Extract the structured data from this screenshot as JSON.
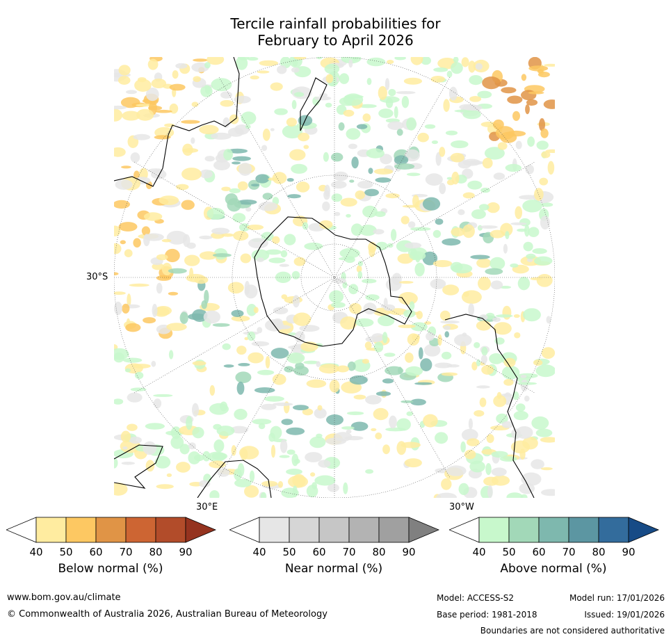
{
  "title_line1": "Tercile rainfall probabilities for",
  "title_line2": "February to April 2026",
  "map": {
    "labels": {
      "lat": "30°S",
      "lon_e": "30°E",
      "lon_w": "30°W"
    }
  },
  "colorbars": [
    {
      "title": "Below normal (%)",
      "ticks": [
        "40",
        "50",
        "60",
        "70",
        "80",
        "90"
      ],
      "colors": [
        "#ffffff",
        "#ffeca0",
        "#fdc862",
        "#e09446",
        "#cd6533",
        "#b24c2a",
        "#95331f"
      ]
    },
    {
      "title": "Near normal (%)",
      "ticks": [
        "40",
        "50",
        "60",
        "70",
        "80",
        "90"
      ],
      "colors": [
        "#ffffff",
        "#e6e6e6",
        "#d6d6d6",
        "#c6c6c6",
        "#b3b3b3",
        "#a0a0a0",
        "#808080"
      ]
    },
    {
      "title": "Above normal (%)",
      "ticks": [
        "40",
        "50",
        "60",
        "70",
        "80",
        "90"
      ],
      "colors": [
        "#ffffff",
        "#c8f8cc",
        "#a2d8b8",
        "#7eb8ae",
        "#5c96a2",
        "#336c9c",
        "#174b86"
      ]
    }
  ],
  "footer": {
    "url": "www.bom.gov.au/climate",
    "copyright": "© Commonwealth of Australia 2026, Australian Bureau of Meteorology",
    "model": "Model: ACCESS-S2",
    "model_run": "Model run: 17/01/2026",
    "base_period": "Base period: 1981-2018",
    "issued": "Issued: 19/01/2026",
    "disclaimer": "Boundaries are not considered authoritative"
  }
}
